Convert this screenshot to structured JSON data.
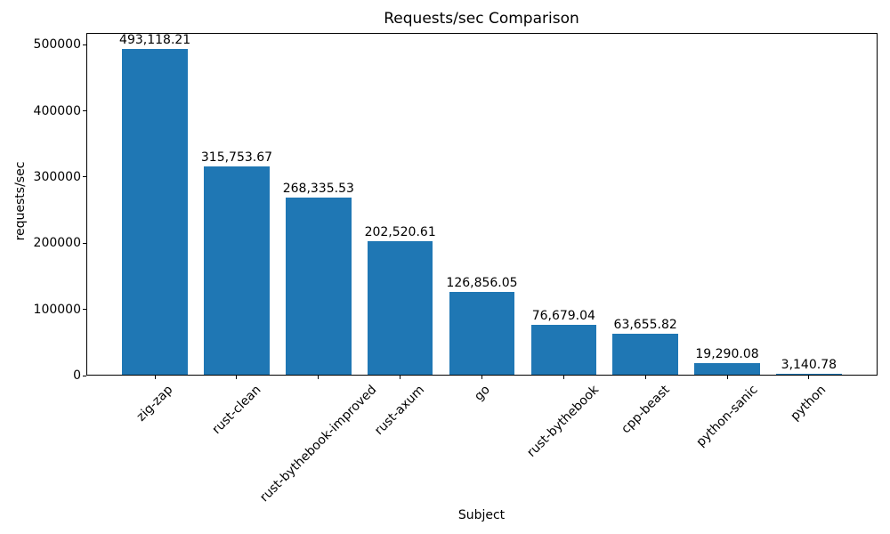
{
  "chart_data": {
    "type": "bar",
    "title": "Requests/sec Comparison",
    "xlabel": "Subject",
    "ylabel": "requests/sec",
    "categories": [
      "zig-zap",
      "rust-clean",
      "rust-bythebook-improved",
      "rust-axum",
      "go",
      "rust-bythebook",
      "cpp-beast",
      "python-sanic",
      "python"
    ],
    "values": [
      493118.21,
      315753.67,
      268335.53,
      202520.61,
      126856.05,
      76679.04,
      63655.82,
      19290.08,
      3140.78
    ],
    "value_labels": [
      "493,118.21",
      "315,753.67",
      "268,335.53",
      "202,520.61",
      "126,856.05",
      "76,679.04",
      "63,655.82",
      "19,290.08",
      "3,140.78"
    ],
    "ylim": [
      0,
      517774
    ],
    "yticks": [
      0,
      100000,
      200000,
      300000,
      400000,
      500000
    ],
    "ytick_labels": [
      "0",
      "100000",
      "200000",
      "300000",
      "400000",
      "500000"
    ],
    "bar_color": "#1f77b4",
    "grid": false,
    "legend": null,
    "xtick_rotation_deg": 45
  }
}
